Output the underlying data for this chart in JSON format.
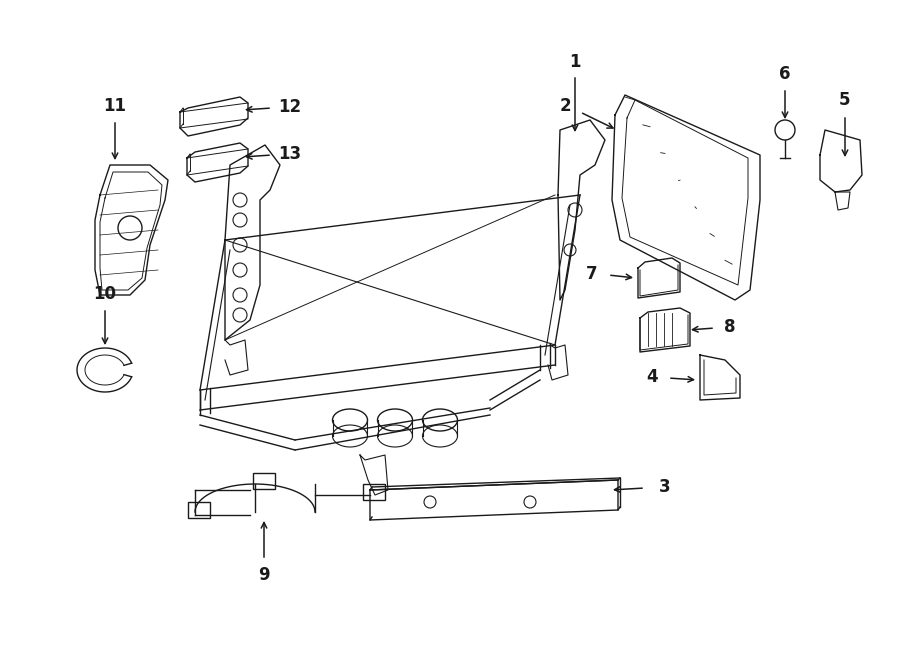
{
  "bg_color": "#ffffff",
  "line_color": "#1a1a1a",
  "fig_width": 9.0,
  "fig_height": 6.61,
  "dpi": 100,
  "lw": 1.0,
  "font_size": 12,
  "font_weight": "bold"
}
